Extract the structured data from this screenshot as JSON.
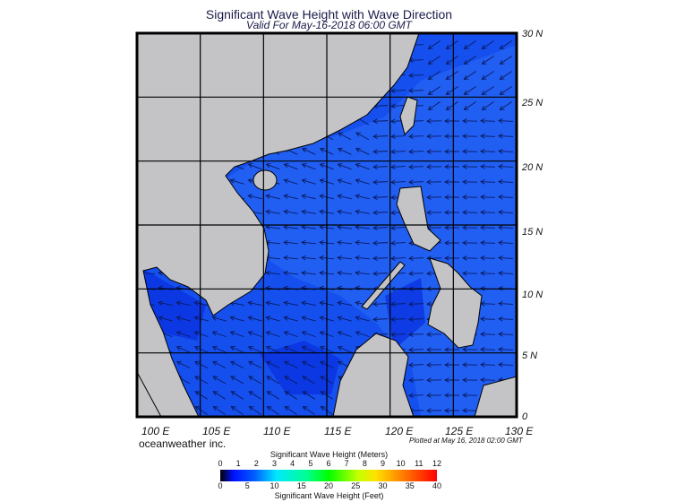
{
  "title": "Significant Wave Height with Wave Direction",
  "subtitle": "Valid For May-16-2018 06:00 GMT",
  "map": {
    "region": "South China Sea",
    "lon_range": [
      100,
      130
    ],
    "lat_range": [
      0,
      30
    ],
    "lat_labels": [
      "30 N",
      "25 N",
      "20 N",
      "15 N",
      "10 N",
      "5 N",
      "0"
    ],
    "lon_labels": [
      "100 E",
      "105 E",
      "110 E",
      "115 E",
      "120 E",
      "125 E",
      "130 E"
    ],
    "colors": {
      "land": "#c4c3c6",
      "ocean": "#1550ee",
      "ocean_dark": "#0a32e0",
      "ocean_light": "#2b6cf6",
      "grid": "#000000"
    },
    "arrow_direction": "mostly toward west / southwest"
  },
  "footer": {
    "company": "oceanweather inc.",
    "plotted": "Plotted at May 16, 2018 02:00 GMT"
  },
  "colorbar": {
    "title_m": "Significant Wave Height (Meters)",
    "title_ft": "Significant Wave Height (Feet)",
    "ticks_m": [
      "0",
      "1",
      "2",
      "3",
      "4",
      "5",
      "6",
      "7",
      "8",
      "9",
      "10",
      "11",
      "12"
    ],
    "ticks_ft": [
      "0",
      "5",
      "10",
      "15",
      "20",
      "25",
      "30",
      "35",
      "40"
    ],
    "range_m": [
      0,
      12
    ],
    "range_ft": [
      0,
      40
    ]
  }
}
